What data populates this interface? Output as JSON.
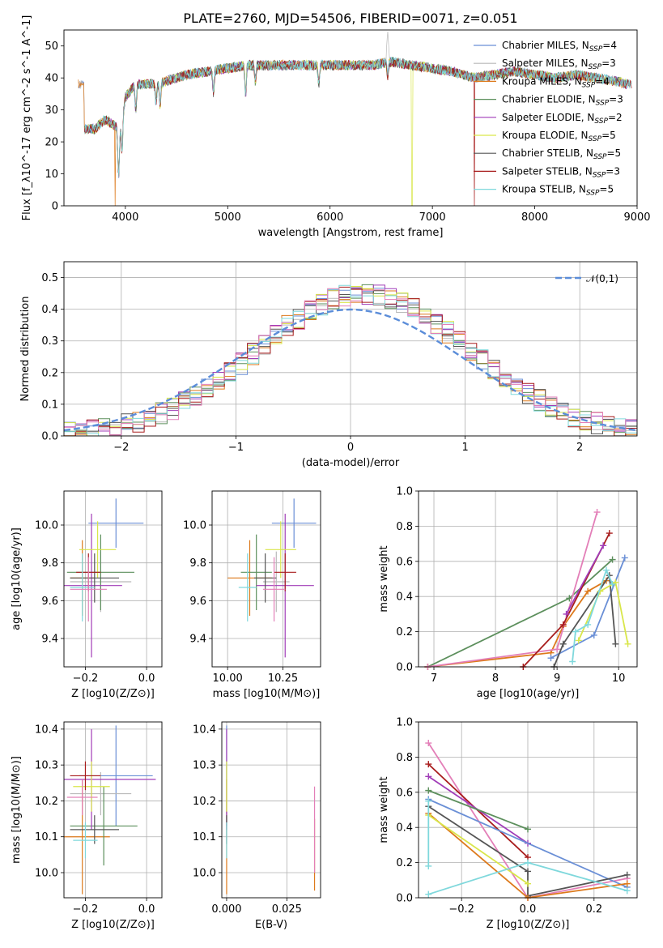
{
  "title": "PLATE=2760, MJD=54506, FIBERID=0071, z=0.051",
  "colors": {
    "Chabrier MILES": "#6a8fd6",
    "Salpeter MILES": "#b9b9b9",
    "Kroupa MILES": "#dd7a1c",
    "Chabrier ELODIE": "#5c8f5c",
    "Salpeter ELODIE": "#a13db8",
    "Kroupa ELODIE": "#d9e64a",
    "Chabrier STELIB": "#555555",
    "Salpeter STELIB": "#a81c1c",
    "Kroupa STELIB": "#7fd8dc",
    "pink": "#e37fb8",
    "normal": "#5b8dd9"
  },
  "chart_data": [
    {
      "id": "spectrum",
      "type": "line",
      "xlabel": "wavelength [Angstrom, rest frame]",
      "ylabel": "Flux [f_λ10^-17 erg cm^-2 s^-1 A^-1]",
      "xlim": [
        3400,
        9000
      ],
      "ylim": [
        0,
        55
      ],
      "xticks": [
        4000,
        5000,
        6000,
        7000,
        8000,
        9000
      ],
      "yticks": [
        0,
        10,
        20,
        30,
        40,
        50
      ],
      "grid": false,
      "legend_position": "top-right",
      "series": [
        {
          "name": "Chabrier MILES, N_SSP=4",
          "key": "Chabrier MILES"
        },
        {
          "name": "Salpeter MILES, N_SSP=3",
          "key": "Salpeter MILES"
        },
        {
          "name": "Kroupa MILES, N_SSP=4",
          "key": "Kroupa MILES"
        },
        {
          "name": "Chabrier ELODIE, N_SSP=3",
          "key": "Chabrier ELODIE"
        },
        {
          "name": "Salpeter ELODIE, N_SSP=2",
          "key": "Salpeter ELODIE"
        },
        {
          "name": "Kroupa ELODIE, N_SSP=5",
          "key": "Kroupa ELODIE"
        },
        {
          "name": "Chabrier STELIB, N_SSP=5",
          "key": "Chabrier STELIB"
        },
        {
          "name": "Salpeter STELIB, N_SSP=3",
          "key": "Salpeter STELIB"
        },
        {
          "name": "Kroupa STELIB, N_SSP=5",
          "key": "Kroupa STELIB"
        }
      ],
      "continuum": [
        [
          3600,
          24
        ],
        [
          3700,
          24
        ],
        [
          3800,
          27
        ],
        [
          3900,
          25
        ],
        [
          3950,
          23
        ],
        [
          4000,
          34
        ],
        [
          4100,
          38
        ],
        [
          4300,
          38
        ],
        [
          4400,
          39
        ],
        [
          4600,
          41
        ],
        [
          4800,
          42
        ],
        [
          5000,
          43
        ],
        [
          5200,
          44
        ],
        [
          5400,
          44
        ],
        [
          5600,
          44
        ],
        [
          5800,
          44
        ],
        [
          6000,
          44
        ],
        [
          6200,
          44
        ],
        [
          6400,
          44
        ],
        [
          6600,
          45
        ],
        [
          6800,
          44
        ],
        [
          7000,
          43
        ],
        [
          7200,
          42
        ],
        [
          7400,
          40
        ],
        [
          7600,
          41
        ],
        [
          7800,
          42
        ],
        [
          8000,
          41
        ],
        [
          8200,
          40
        ],
        [
          8400,
          41
        ],
        [
          8600,
          40
        ],
        [
          8800,
          39
        ],
        [
          8900,
          38
        ]
      ],
      "features": {
        "salpeter_miles_emission": {
          "x": 6563,
          "y": 55
        },
        "drops": [
          {
            "x": 3900,
            "series": "Kroupa MILES"
          },
          {
            "x": 6800,
            "series": "Kroupa ELODIE"
          },
          {
            "x": 7410,
            "series": "Salpeter STELIB"
          }
        ]
      }
    },
    {
      "id": "residual-histogram",
      "type": "histogram",
      "xlabel": "(data-model)/error",
      "ylabel": "Normed distribution",
      "xlim": [
        -2.5,
        2.5
      ],
      "ylim": [
        0,
        0.55
      ],
      "xticks": [
        -2,
        -1,
        0,
        1,
        2
      ],
      "yticks": [
        0.0,
        0.1,
        0.2,
        0.3,
        0.4,
        0.5
      ],
      "grid": true,
      "legend_position": "top-right",
      "legend": "𝒩(0,1)",
      "bin_width": 0.1,
      "peak_shift": 0.12,
      "peak_height": 0.45
    },
    {
      "id": "age-vs-Z",
      "type": "errorbar",
      "xlabel": "Z [log10(Z/Z⊙)]",
      "ylabel": "age  [log10(age/yr)]",
      "xlim": [
        -0.27,
        0.05
      ],
      "ylim": [
        9.25,
        10.18
      ],
      "xticks": [
        -0.2,
        0.0
      ],
      "yticks": [
        9.4,
        9.6,
        9.8,
        10.0
      ],
      "grid": true,
      "points": [
        {
          "key": "Chabrier MILES",
          "x": -0.1,
          "y": 10.01,
          "xerr": 0.09,
          "yerr": 0.13
        },
        {
          "key": "Salpeter MILES",
          "x": -0.15,
          "y": 9.7,
          "xerr": 0.1,
          "yerr": 0.16
        },
        {
          "key": "Kroupa MILES",
          "x": -0.21,
          "y": 9.72,
          "xerr": 0.04,
          "yerr": 0.2
        },
        {
          "key": "Chabrier ELODIE",
          "x": -0.15,
          "y": 9.75,
          "xerr": 0.11,
          "yerr": 0.2
        },
        {
          "key": "Salpeter ELODIE",
          "x": -0.18,
          "y": 9.68,
          "xerr": 0.1,
          "yerr": 0.38
        },
        {
          "key": "Kroupa ELODIE",
          "x": -0.16,
          "y": 9.87,
          "xerr": 0.06,
          "yerr": 0.15
        },
        {
          "key": "Chabrier STELIB",
          "x": -0.17,
          "y": 9.72,
          "xerr": 0.08,
          "yerr": 0.13
        },
        {
          "key": "Salpeter STELIB",
          "x": -0.19,
          "y": 9.75,
          "xerr": 0.04,
          "yerr": 0.1
        },
        {
          "key": "Kroupa STELIB",
          "x": -0.21,
          "y": 9.67,
          "xerr": 0.04,
          "yerr": 0.18
        },
        {
          "key": "pink",
          "x": -0.19,
          "y": 9.66,
          "xerr": 0.06,
          "yerr": 0.17
        }
      ]
    },
    {
      "id": "age-vs-mass",
      "type": "errorbar",
      "xlabel": "mass [log10(M/M⊙)]",
      "ylabel": "",
      "xlim": [
        9.93,
        10.42
      ],
      "ylim": [
        9.25,
        10.18
      ],
      "xticks": [
        10.0,
        10.25
      ],
      "xticklabels": [
        "10.00",
        "10.25"
      ],
      "yticks": [
        9.4,
        9.6,
        9.8,
        10.0
      ],
      "grid": true,
      "points": [
        {
          "key": "Chabrier MILES",
          "x": 10.3,
          "y": 10.01,
          "xerr": 0.1,
          "yerr": 0.13
        },
        {
          "key": "Salpeter MILES",
          "x": 10.22,
          "y": 9.7,
          "xerr": 0.06,
          "yerr": 0.16
        },
        {
          "key": "Kroupa MILES",
          "x": 10.1,
          "y": 9.72,
          "xerr": 0.1,
          "yerr": 0.2
        },
        {
          "key": "Chabrier ELODIE",
          "x": 10.13,
          "y": 9.75,
          "xerr": 0.07,
          "yerr": 0.2
        },
        {
          "key": "Salpeter ELODIE",
          "x": 10.26,
          "y": 9.68,
          "xerr": 0.13,
          "yerr": 0.38
        },
        {
          "key": "Kroupa ELODIE",
          "x": 10.24,
          "y": 9.87,
          "xerr": 0.07,
          "yerr": 0.15
        },
        {
          "key": "Chabrier STELIB",
          "x": 10.17,
          "y": 9.72,
          "xerr": 0.05,
          "yerr": 0.13
        },
        {
          "key": "Salpeter STELIB",
          "x": 10.26,
          "y": 9.75,
          "xerr": 0.05,
          "yerr": 0.1
        },
        {
          "key": "Kroupa STELIB",
          "x": 10.09,
          "y": 9.67,
          "xerr": 0.04,
          "yerr": 0.18
        },
        {
          "key": "pink",
          "x": 10.21,
          "y": 9.66,
          "xerr": 0.05,
          "yerr": 0.17
        }
      ]
    },
    {
      "id": "weight-vs-age",
      "type": "line",
      "xlabel": "age  [log10(age/yr)]",
      "ylabel": "mass weight",
      "xlim": [
        6.75,
        10.3
      ],
      "ylim": [
        0,
        1.0
      ],
      "xticks": [
        7,
        8,
        9,
        10
      ],
      "yticks": [
        0.0,
        0.2,
        0.4,
        0.6,
        0.8,
        1.0
      ],
      "grid": true,
      "series": [
        {
          "key": "Chabrier ELODIE",
          "points": [
            [
              6.9,
              0.0
            ],
            [
              9.2,
              0.39
            ],
            [
              9.9,
              0.61
            ]
          ]
        },
        {
          "key": "Kroupa MILES",
          "points": [
            [
              6.9,
              0.0
            ],
            [
              8.9,
              0.08
            ],
            [
              9.1,
              0.23
            ],
            [
              9.5,
              0.43
            ],
            [
              9.8,
              0.49
            ]
          ]
        },
        {
          "key": "pink",
          "points": [
            [
              6.9,
              0.0
            ],
            [
              9.0,
              0.1
            ],
            [
              9.65,
              0.88
            ]
          ]
        },
        {
          "key": "Salpeter STELIB",
          "points": [
            [
              8.45,
              0.0
            ],
            [
              9.1,
              0.24
            ],
            [
              9.85,
              0.76
            ]
          ]
        },
        {
          "key": "Chabrier MILES",
          "points": [
            [
              8.9,
              0.05
            ],
            [
              9.6,
              0.18
            ],
            [
              10.1,
              0.62
            ]
          ]
        },
        {
          "key": "Salpeter ELODIE",
          "points": [
            [
              9.15,
              0.3
            ],
            [
              9.75,
              0.69
            ]
          ]
        },
        {
          "key": "Chabrier STELIB",
          "points": [
            [
              8.95,
              0.0
            ],
            [
              9.1,
              0.13
            ],
            [
              9.85,
              0.52
            ],
            [
              9.95,
              0.13
            ]
          ]
        },
        {
          "key": "Kroupa ELODIE",
          "points": [
            [
              9.35,
              0.15
            ],
            [
              9.7,
              0.43
            ],
            [
              9.95,
              0.48
            ],
            [
              10.15,
              0.13
            ]
          ]
        },
        {
          "key": "Kroupa STELIB",
          "points": [
            [
              9.25,
              0.03
            ],
            [
              9.3,
              0.2
            ],
            [
              9.5,
              0.24
            ],
            [
              9.8,
              0.55
            ],
            [
              9.9,
              0.47
            ]
          ]
        }
      ]
    },
    {
      "id": "mass-vs-Z",
      "type": "errorbar",
      "xlabel": "Z [log10(Z/Z⊙)]",
      "ylabel": "mass [log10(M/M⊙)]",
      "xlim": [
        -0.27,
        0.05
      ],
      "ylim": [
        9.93,
        10.42
      ],
      "xticks": [
        -0.2,
        0.0
      ],
      "yticks": [
        10.0,
        10.1,
        10.2,
        10.3,
        10.4
      ],
      "grid": true,
      "points": [
        {
          "key": "Chabrier MILES",
          "x": -0.1,
          "y": 10.27,
          "xerr": 0.12,
          "yerr": 0.14
        },
        {
          "key": "Salpeter MILES",
          "x": -0.15,
          "y": 10.22,
          "xerr": 0.1,
          "yerr": 0.06
        },
        {
          "key": "Kroupa MILES",
          "x": -0.21,
          "y": 10.1,
          "xerr": 0.09,
          "yerr": 0.16
        },
        {
          "key": "Chabrier ELODIE",
          "x": -0.14,
          "y": 10.13,
          "xerr": 0.11,
          "yerr": 0.11
        },
        {
          "key": "Salpeter ELODIE",
          "x": -0.18,
          "y": 10.26,
          "xerr": 0.21,
          "yerr": 0.14
        },
        {
          "key": "Kroupa ELODIE",
          "x": -0.18,
          "y": 10.24,
          "xerr": 0.06,
          "yerr": 0.07
        },
        {
          "key": "Chabrier STELIB",
          "x": -0.17,
          "y": 10.12,
          "xerr": 0.08,
          "yerr": 0.04
        },
        {
          "key": "Salpeter STELIB",
          "x": -0.2,
          "y": 10.27,
          "xerr": 0.05,
          "yerr": 0.04
        },
        {
          "key": "Kroupa STELIB",
          "x": -0.2,
          "y": 10.09,
          "xerr": 0.04,
          "yerr": 0.05
        },
        {
          "key": "pink",
          "x": -0.21,
          "y": 10.21,
          "xerr": 0.05,
          "yerr": 0.05
        }
      ]
    },
    {
      "id": "mass-vs-EBV",
      "type": "errorbar",
      "xlabel": "E(B-V)",
      "ylabel": "",
      "xlim": [
        -0.002,
        0.039
      ],
      "ylim": [
        9.93,
        10.42
      ],
      "xticks": [
        0.0,
        0.025
      ],
      "xticklabels": [
        "0.000",
        "0.025"
      ],
      "yticks": [
        10.0,
        10.1,
        10.2,
        10.3,
        10.4
      ],
      "grid": true,
      "points": [
        {
          "key": "Chabrier MILES",
          "x": 0.0,
          "y": 10.27,
          "xerr": 0,
          "yerr": 0.14
        },
        {
          "key": "Kroupa MILES",
          "x": 0.0,
          "y": 10.1,
          "xerr": 0,
          "yerr": 0.16
        },
        {
          "key": "Kroupa MILES",
          "x": 0.0365,
          "y": 10.05,
          "xerr": 0,
          "yerr": 0.1
        },
        {
          "key": "Salpeter ELODIE",
          "x": 0.0,
          "y": 10.26,
          "xerr": 0,
          "yerr": 0.14
        },
        {
          "key": "Kroupa ELODIE",
          "x": 0.0,
          "y": 10.24,
          "xerr": 0,
          "yerr": 0.07
        },
        {
          "key": "Chabrier STELIB",
          "x": 0.0,
          "y": 10.12,
          "xerr": 0,
          "yerr": 0.04
        },
        {
          "key": "Kroupa STELIB",
          "x": 0.0,
          "y": 10.09,
          "xerr": 0,
          "yerr": 0.05
        },
        {
          "key": "pink",
          "x": 0.0365,
          "y": 10.12,
          "xerr": 0,
          "yerr": 0.12
        }
      ]
    },
    {
      "id": "weight-vs-Z",
      "type": "line",
      "xlabel": "Z [log10(Z/Z⊙)]",
      "ylabel": "mass weight",
      "xlim": [
        -0.33,
        0.33
      ],
      "ylim": [
        0,
        1.0
      ],
      "xticks": [
        -0.2,
        0.0,
        0.2
      ],
      "yticks": [
        0.0,
        0.2,
        0.4,
        0.6,
        0.8,
        1.0
      ],
      "grid": true,
      "series": [
        {
          "key": "pink",
          "points": [
            [
              -0.3,
              0.88
            ],
            [
              0.0,
              0.0
            ],
            [
              0.3,
              0.11
            ]
          ]
        },
        {
          "key": "Salpeter STELIB",
          "points": [
            [
              -0.3,
              0.76
            ],
            [
              0.0,
              0.23
            ]
          ]
        },
        {
          "key": "Salpeter ELODIE",
          "points": [
            [
              -0.3,
              0.69
            ],
            [
              0.0,
              0.31
            ]
          ]
        },
        {
          "key": "Chabrier ELODIE",
          "points": [
            [
              -0.3,
              0.61
            ],
            [
              0.0,
              0.39
            ]
          ]
        },
        {
          "key": "Chabrier MILES",
          "points": [
            [
              -0.3,
              0.56
            ],
            [
              0.3,
              0.06
            ]
          ]
        },
        {
          "key": "Chabrier STELIB",
          "points": [
            [
              -0.3,
              0.52
            ],
            [
              0.0,
              0.15
            ],
            [
              0.0,
              0.01
            ],
            [
              0.3,
              0.13
            ]
          ]
        },
        {
          "key": "Kroupa MILES",
          "points": [
            [
              -0.3,
              0.48
            ],
            [
              0.0,
              0.0
            ],
            [
              0.3,
              0.08
            ]
          ]
        },
        {
          "key": "Kroupa ELODIE",
          "points": [
            [
              -0.3,
              0.47
            ],
            [
              0.0,
              0.08
            ]
          ]
        },
        {
          "key": "Kroupa STELIB",
          "points": [
            [
              -0.3,
              0.02
            ],
            [
              0.0,
              0.2
            ],
            [
              0.3,
              0.04
            ]
          ]
        },
        {
          "key": "Kroupa STELIB",
          "points": [
            [
              -0.3,
              0.55
            ],
            [
              -0.3,
              0.18
            ]
          ]
        }
      ]
    }
  ]
}
